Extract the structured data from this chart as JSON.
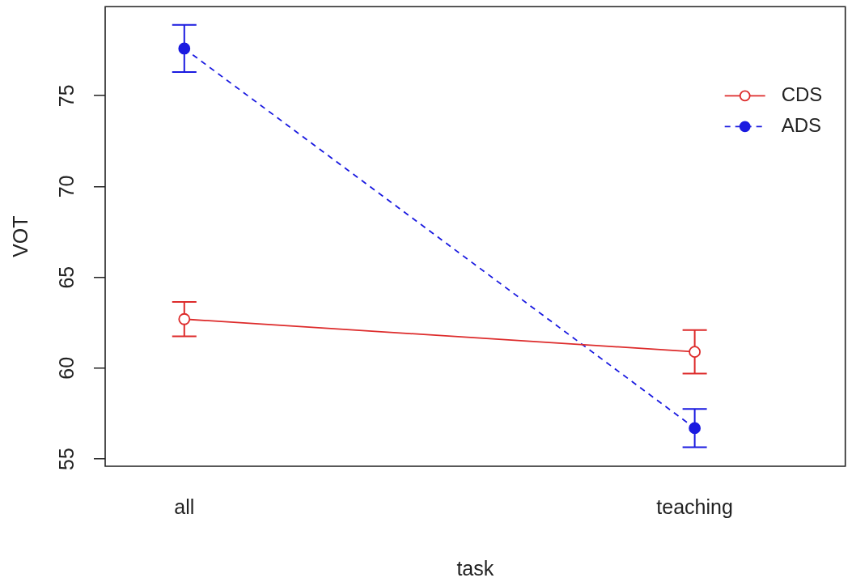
{
  "chart_data": {
    "type": "line",
    "xlabel": "task",
    "ylabel": "VOT",
    "categories": [
      "all",
      "teaching"
    ],
    "series": [
      {
        "name": "CDS",
        "color": "#dd2b2b",
        "values": [
          62.7,
          60.9
        ],
        "errors": [
          0.95,
          1.2
        ],
        "line_style": "solid"
      },
      {
        "name": "ADS",
        "color": "#1a1ae0",
        "values": [
          77.6,
          56.7
        ],
        "errors": [
          1.3,
          1.05
        ],
        "line_style": "dashed"
      }
    ],
    "ylim": [
      54.6,
      79.9
    ],
    "yticks": [
      55,
      60,
      65,
      70,
      75
    ],
    "grid": false,
    "legend": "top right",
    "marker": "circle"
  }
}
